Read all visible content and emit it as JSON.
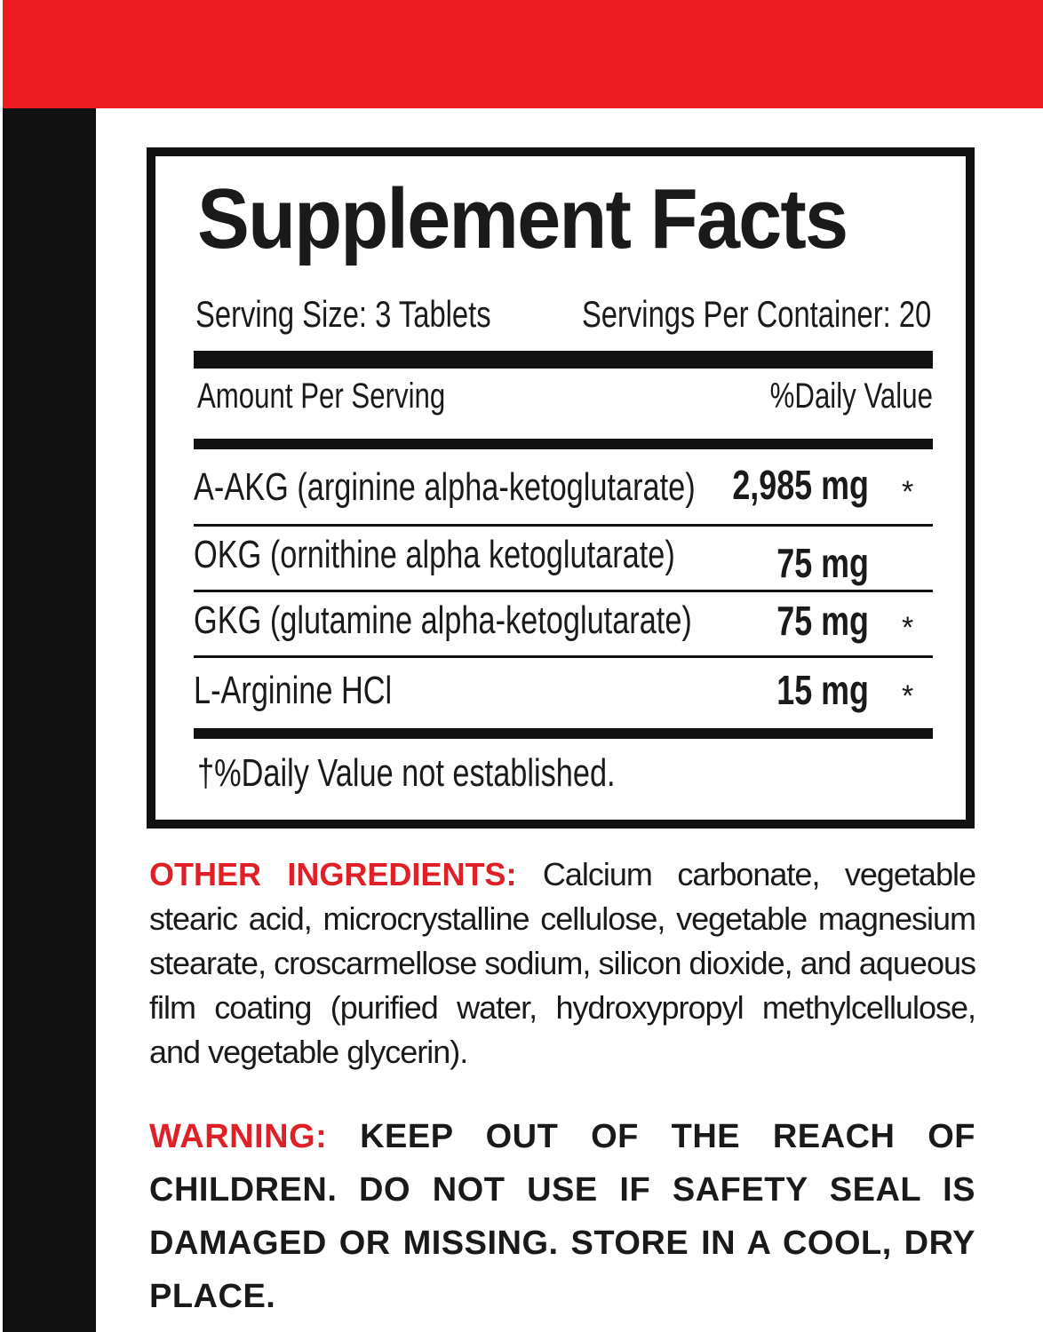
{
  "colors": {
    "accent_red": "#ed1c24",
    "black": "#111111"
  },
  "title": "Supplement Facts",
  "serving_size": "Serving Size: 3 Tablets",
  "servings_per_container": "Servings Per Container: 20",
  "amount_per_serving": "Amount Per Serving",
  "daily_value_header": "%Daily Value",
  "ingredients": [
    {
      "name": "A-AKG (arginine alpha-ketoglutarate)",
      "amount": "2,985 mg",
      "dv": "*"
    },
    {
      "name": "OKG (ornithine alpha ketoglutarate)",
      "amount": "75 mg",
      "dv": ""
    },
    {
      "name": "GKG (glutamine alpha-ketoglutarate)",
      "amount": "75 mg",
      "dv": "*"
    },
    {
      "name": "L-Arginine HCl",
      "amount": "15 mg",
      "dv": "*"
    }
  ],
  "footnote": "†%Daily Value not established.",
  "other_ingredients": {
    "label": "OTHER INGREDIENTS:",
    "text": "Calcium carbonate, vegetable stearic acid, microcrystalline cellulose, vegetable magnesium stearate, croscarmellose sodium, silicon dioxide, and aqueous film coating (purified water, hydroxypropyl methylcellulose, and vegetable glycerin)."
  },
  "warning": {
    "label": "WARNING:",
    "text": "KEEP OUT OF THE REACH OF CHILDREN. DO NOT USE IF SAFETY SEAL IS DAMAGED OR MISSING. STORE IN A COOL, DRY PLACE."
  }
}
